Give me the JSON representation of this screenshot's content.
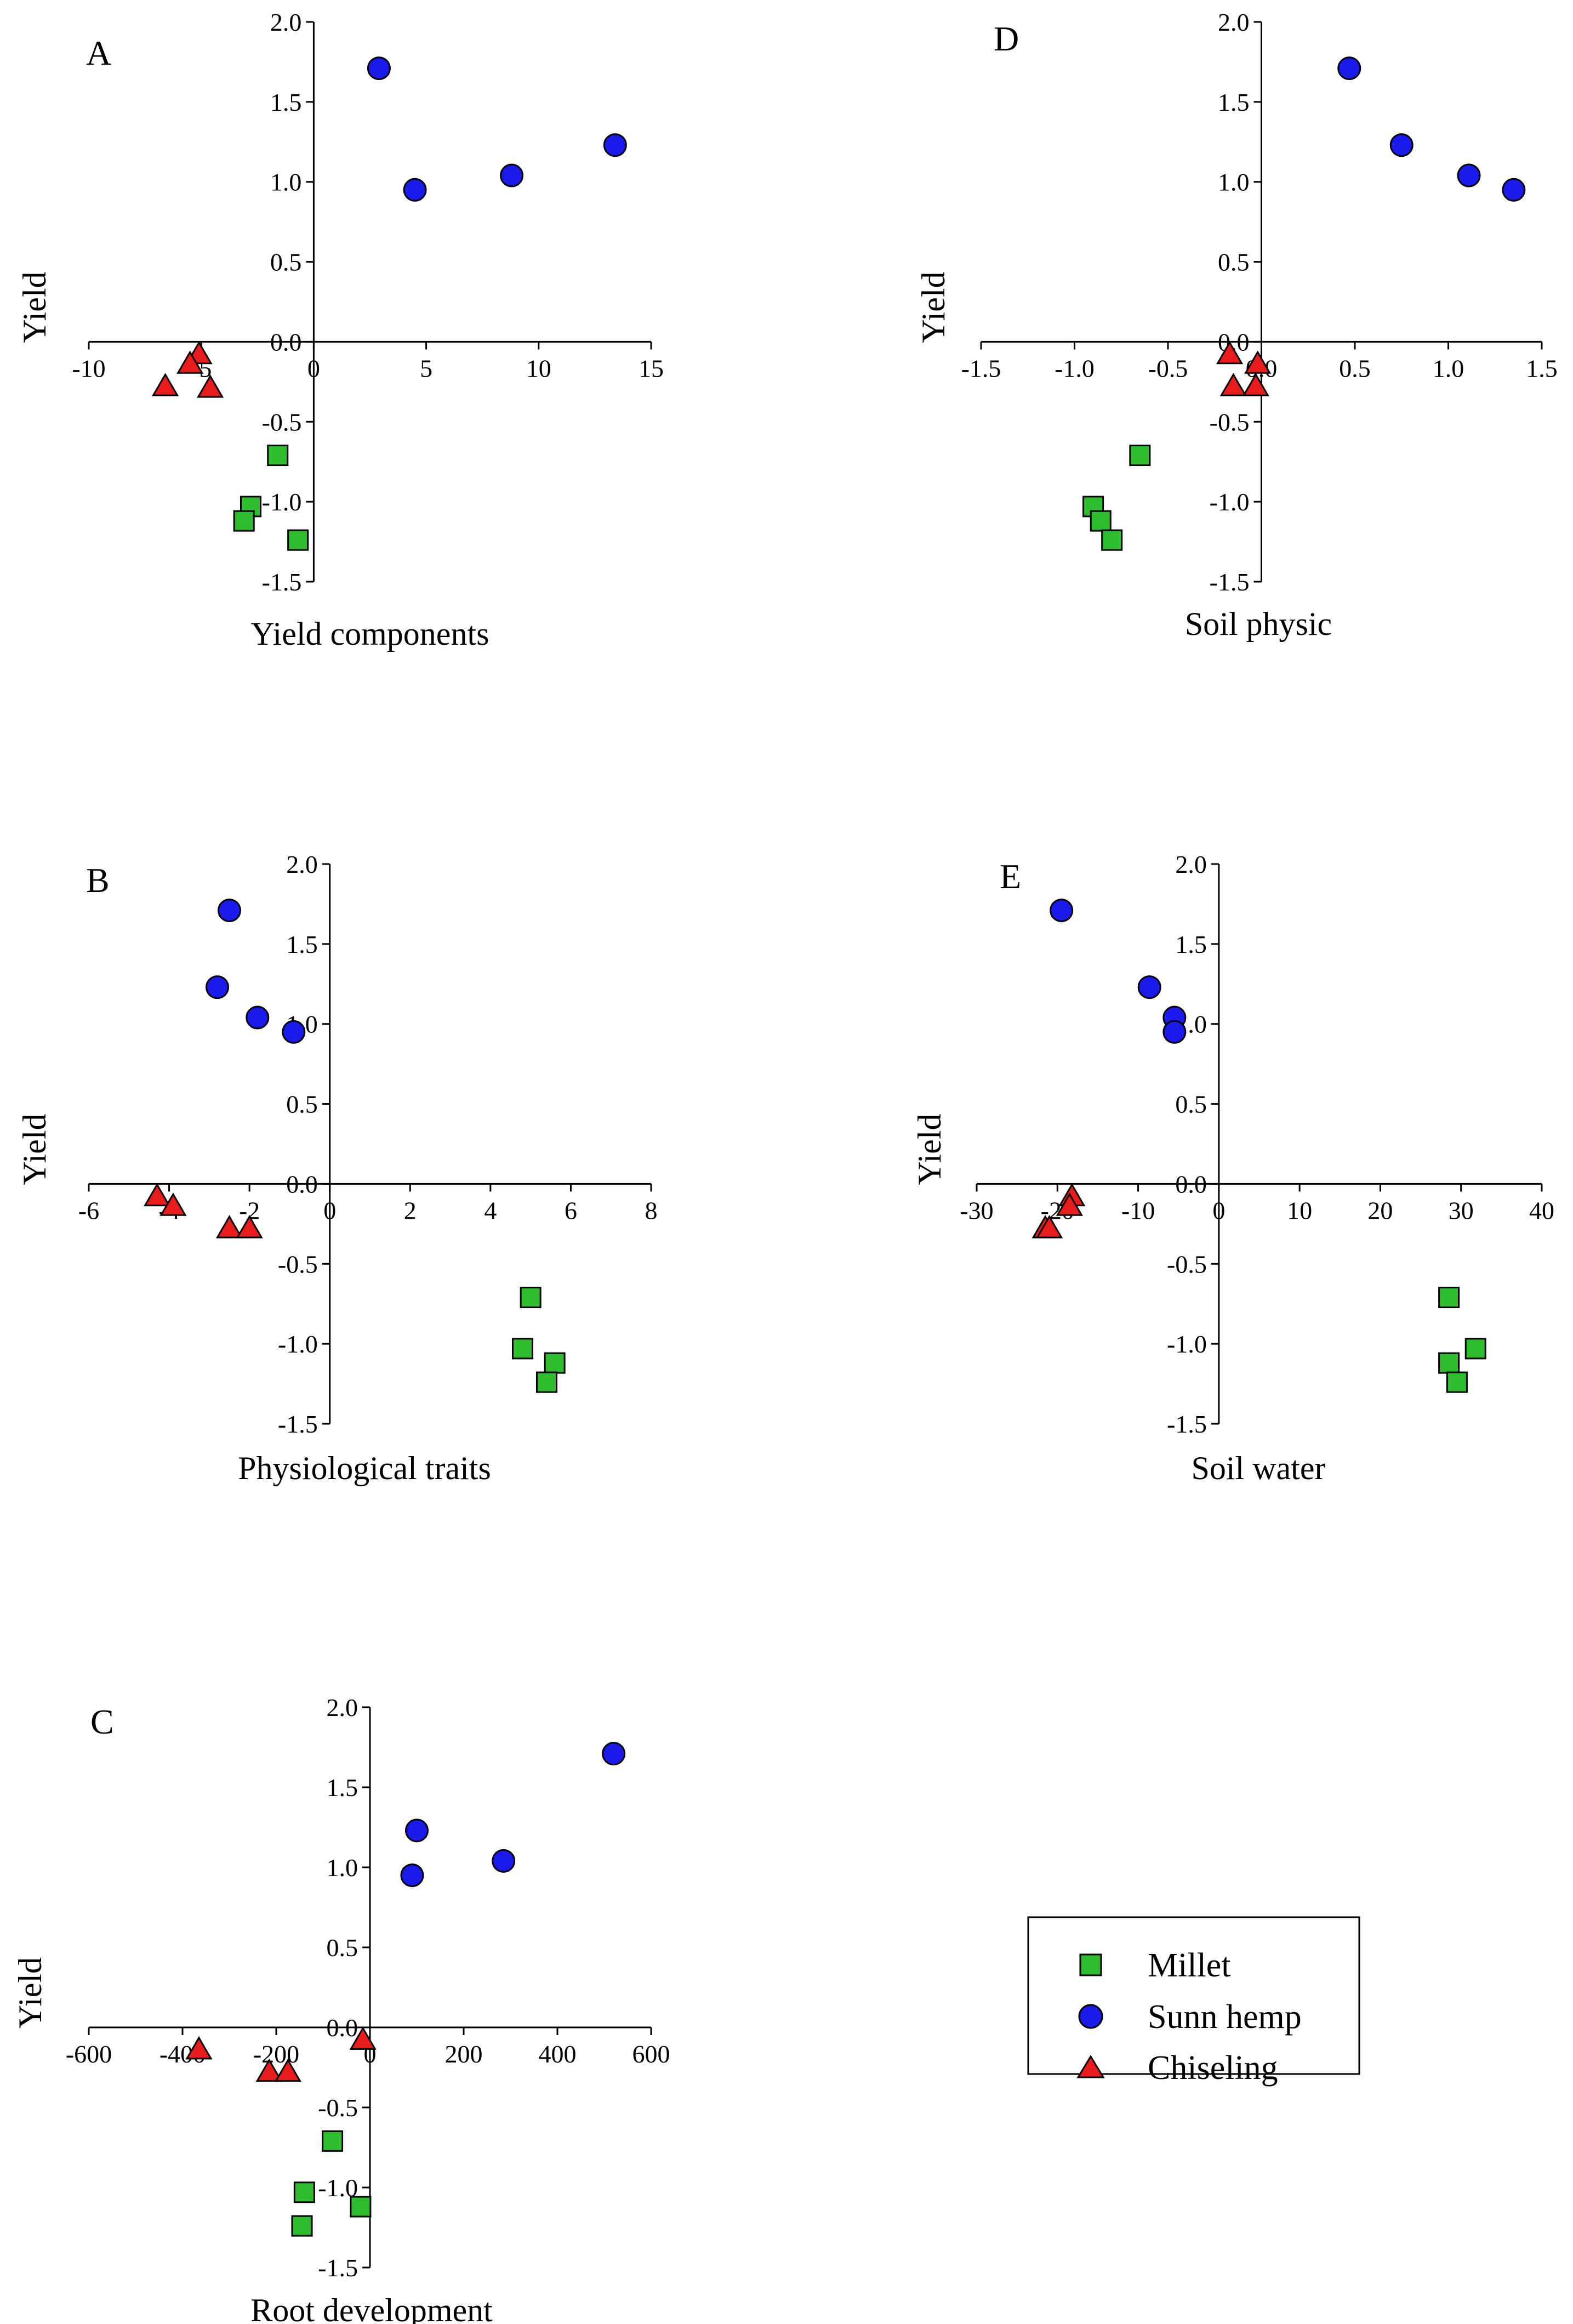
{
  "figure": {
    "legend_position": "bottom-right"
  },
  "legend": {
    "entries": [
      {
        "name": "Millet",
        "marker": "square",
        "color": "#2ebd2e"
      },
      {
        "name": "Sunn hemp",
        "marker": "circle",
        "color": "#1a1aeb"
      },
      {
        "name": "Chiseling",
        "marker": "triangle",
        "color": "#e81c1c"
      }
    ]
  },
  "colors": {
    "Millet": "#2ebd2e",
    "Sunn hemp": "#1a1aeb",
    "Chiseling": "#e81c1c",
    "outline": "#000000"
  },
  "chart_data": [
    {
      "id": "A",
      "type": "scatter",
      "label": "A",
      "xlabel": "Yield components",
      "ylabel": "Yield",
      "xlim": [
        -10,
        15
      ],
      "ylim": [
        -1.5,
        2.0
      ],
      "xticks": [
        -10,
        -5,
        0,
        5,
        10,
        15
      ],
      "xtick_labels": [
        "-10",
        "-5",
        "0",
        "5",
        "10",
        "15"
      ],
      "yticks": [
        -1.5,
        -1.0,
        -0.5,
        0.0,
        0.5,
        1.0,
        1.5,
        2.0
      ],
      "ytick_labels": [
        "-1.5",
        "-1.0",
        "-0.5",
        "0.0",
        "0.5",
        "1.0",
        "1.5",
        "2.0"
      ],
      "series": [
        {
          "name": "Millet",
          "x": [
            -1.6,
            -2.8,
            -3.1,
            -0.7
          ],
          "y": [
            -0.71,
            -1.03,
            -1.12,
            -1.24
          ]
        },
        {
          "name": "Sunn hemp",
          "x": [
            2.9,
            4.5,
            8.8,
            13.4
          ],
          "y": [
            1.71,
            0.95,
            1.04,
            1.23
          ]
        },
        {
          "name": "Chiseling",
          "x": [
            -5.1,
            -5.5,
            -4.6,
            -6.6
          ],
          "y": [
            -0.08,
            -0.14,
            -0.29,
            -0.28
          ]
        }
      ]
    },
    {
      "id": "B",
      "type": "scatter",
      "label": "B",
      "xlabel": "Physiological traits",
      "ylabel": "Yield",
      "xlim": [
        -6,
        8
      ],
      "ylim": [
        -1.5,
        2.0
      ],
      "xticks": [
        -6,
        -4,
        -2,
        0,
        2,
        4,
        6,
        8
      ],
      "xtick_labels": [
        "-6",
        "-4",
        "-2",
        "0",
        "2",
        "4",
        "6",
        "8"
      ],
      "yticks": [
        -1.5,
        -1.0,
        -0.5,
        0.0,
        0.5,
        1.0,
        1.5,
        2.0
      ],
      "ytick_labels": [
        "-1.5",
        "-1.0",
        "-0.5",
        "0.0",
        "0.5",
        "1.0",
        "1.5",
        "2.0"
      ],
      "series": [
        {
          "name": "Millet",
          "x": [
            5.0,
            4.8,
            5.6,
            5.4
          ],
          "y": [
            -0.71,
            -1.03,
            -1.12,
            -1.24
          ]
        },
        {
          "name": "Sunn hemp",
          "x": [
            -2.5,
            -2.8,
            -1.8,
            -0.9
          ],
          "y": [
            1.71,
            1.23,
            1.04,
            0.95
          ]
        },
        {
          "name": "Chiseling",
          "x": [
            -4.3,
            -3.9,
            -2.5,
            -2.0
          ],
          "y": [
            -0.08,
            -0.14,
            -0.28,
            -0.28
          ]
        }
      ]
    },
    {
      "id": "C",
      "type": "scatter",
      "label": "C",
      "xlabel": "Root development",
      "ylabel": "Yield",
      "xlim": [
        -600,
        600
      ],
      "ylim": [
        -1.5,
        2.0
      ],
      "xticks": [
        -600,
        -400,
        -200,
        0,
        200,
        400,
        600
      ],
      "xtick_labels": [
        "-600",
        "-400",
        "-200",
        "0",
        "200",
        "400",
        "600"
      ],
      "yticks": [
        -1.5,
        -1.0,
        -0.5,
        0.0,
        0.5,
        1.0,
        1.5,
        2.0
      ],
      "ytick_labels": [
        "-1.5",
        "-1.0",
        "-0.5",
        "0.0",
        "0.5",
        "1.0",
        "1.5",
        "2.0"
      ],
      "series": [
        {
          "name": "Millet",
          "x": [
            -80,
            -140,
            -20,
            -145
          ],
          "y": [
            -0.71,
            -1.03,
            -1.12,
            -1.24
          ]
        },
        {
          "name": "Sunn hemp",
          "x": [
            520,
            100,
            285,
            90
          ],
          "y": [
            1.71,
            1.23,
            1.04,
            0.95
          ]
        },
        {
          "name": "Chiseling",
          "x": [
            -15,
            -365,
            -215,
            -175
          ],
          "y": [
            -0.08,
            -0.14,
            -0.28,
            -0.28
          ]
        }
      ]
    },
    {
      "id": "D",
      "type": "scatter",
      "label": "D",
      "xlabel": "Soil physic",
      "ylabel": "Yield",
      "xlim": [
        -1.5,
        1.5
      ],
      "ylim": [
        -1.5,
        2.0
      ],
      "xticks": [
        -1.5,
        -1.0,
        -0.5,
        0.0,
        0.5,
        1.0,
        1.5
      ],
      "xtick_labels": [
        "-1.5",
        "-1.0",
        "-0.5",
        "0.0",
        "0.5",
        "1.0",
        "1.5"
      ],
      "yticks": [
        -1.5,
        -1.0,
        -0.5,
        0.0,
        0.5,
        1.0,
        1.5,
        2.0
      ],
      "ytick_labels": [
        "-1.5",
        "-1.0",
        "-0.5",
        "0.0",
        "0.5",
        "1.0",
        "1.5",
        "2.0"
      ],
      "series": [
        {
          "name": "Millet",
          "x": [
            -0.65,
            -0.9,
            -0.86,
            -0.8
          ],
          "y": [
            -0.71,
            -1.03,
            -1.12,
            -1.24
          ]
        },
        {
          "name": "Sunn hemp",
          "x": [
            0.47,
            0.75,
            1.11,
            1.35
          ],
          "y": [
            1.71,
            1.23,
            1.04,
            0.95
          ]
        },
        {
          "name": "Chiseling",
          "x": [
            -0.17,
            -0.02,
            -0.15,
            -0.03
          ],
          "y": [
            -0.08,
            -0.14,
            -0.28,
            -0.28
          ]
        }
      ]
    },
    {
      "id": "E",
      "type": "scatter",
      "label": "E",
      "xlabel": "Soil water",
      "ylabel": "Yield",
      "xlim": [
        -30,
        40
      ],
      "ylim": [
        -1.5,
        2.0
      ],
      "xticks": [
        -30,
        -20,
        -10,
        0,
        10,
        20,
        30,
        40
      ],
      "xtick_labels": [
        "-30",
        "-20",
        "-10",
        "0",
        "10",
        "20",
        "30",
        "40"
      ],
      "yticks": [
        -1.5,
        -1.0,
        -0.5,
        0.0,
        0.5,
        1.0,
        1.5,
        2.0
      ],
      "ytick_labels": [
        "-1.5",
        "-1.0",
        "-0.5",
        "0.0",
        "0.5",
        "1.0",
        "1.5",
        "2.0"
      ],
      "series": [
        {
          "name": "Millet",
          "x": [
            28.5,
            31.8,
            28.5,
            29.5
          ],
          "y": [
            -0.71,
            -1.03,
            -1.12,
            -1.24
          ]
        },
        {
          "name": "Sunn hemp",
          "x": [
            -19.5,
            -8.6,
            -5.5,
            -5.5
          ],
          "y": [
            1.71,
            1.23,
            1.04,
            0.95
          ]
        },
        {
          "name": "Chiseling",
          "x": [
            -18.2,
            -18.5,
            -21.5,
            -21.0
          ],
          "y": [
            -0.08,
            -0.14,
            -0.28,
            -0.28
          ]
        }
      ]
    }
  ]
}
